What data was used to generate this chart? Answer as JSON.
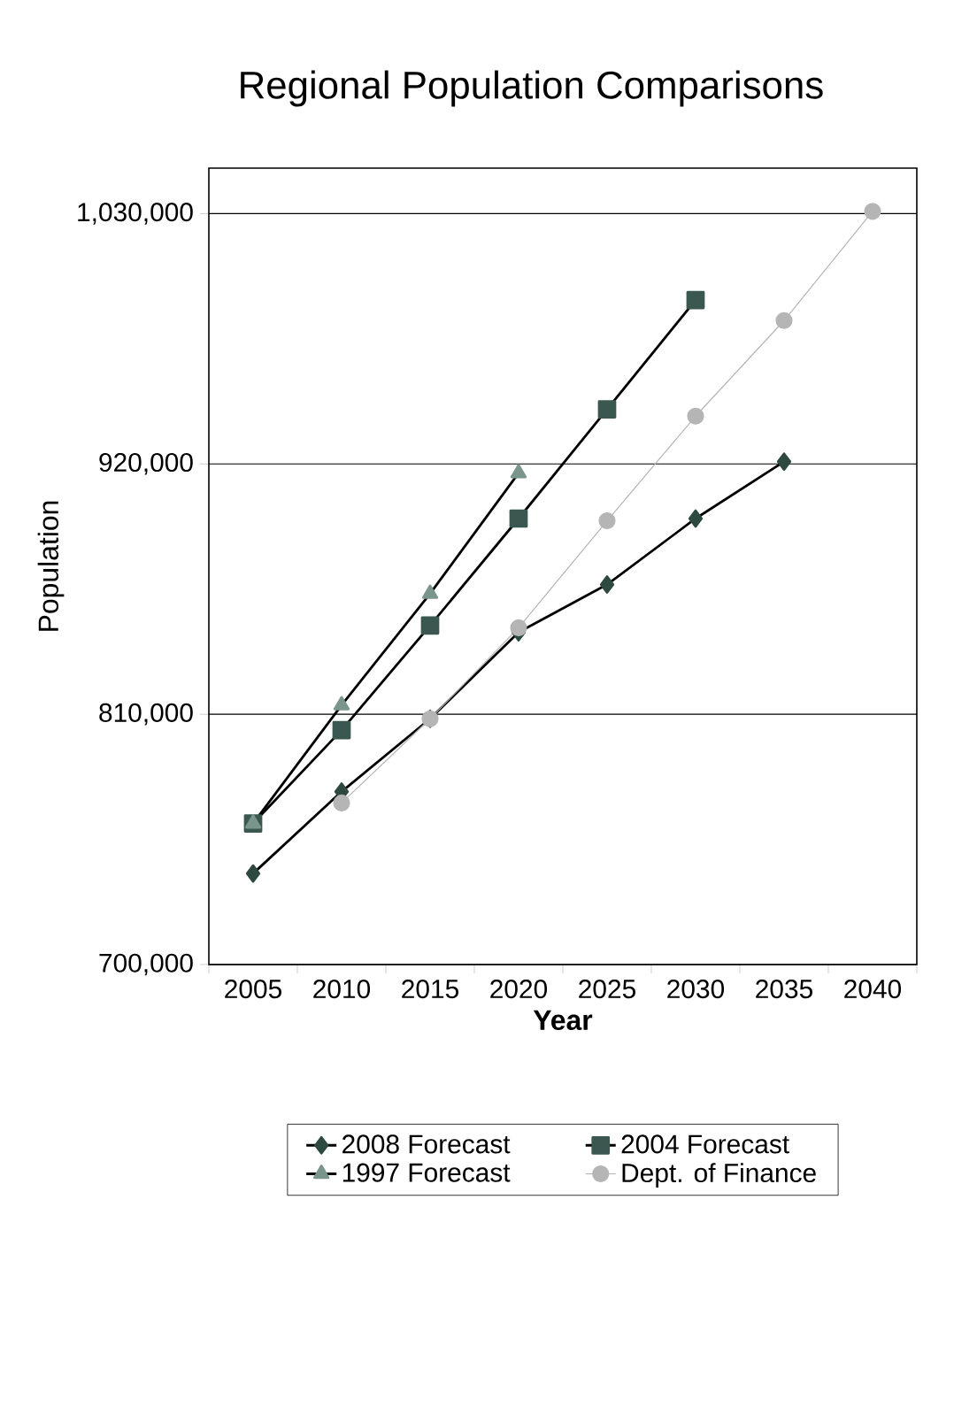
{
  "chart_data": {
    "type": "line",
    "title": "Regional Population Comparisons",
    "xlabel": "Year",
    "ylabel": "Population",
    "categories": [
      "2005",
      "2010",
      "2015",
      "2020",
      "2025",
      "2030",
      "2035",
      "2040"
    ],
    "series": [
      {
        "name": "2008 Forecast",
        "color": "#2e4a40",
        "marker": "diamond",
        "values": [
          740000,
          776000,
          808000,
          846000,
          867000,
          896000,
          921000,
          null
        ]
      },
      {
        "name": "2004 Forecast",
        "color": "#3a5750",
        "marker": "square",
        "values": [
          762000,
          803000,
          849000,
          896000,
          944000,
          992000,
          null,
          null
        ]
      },
      {
        "name": "1997 Forecast",
        "color": "#7a958c",
        "marker": "triangle",
        "values": [
          762000,
          814000,
          863000,
          916000,
          null,
          null,
          null,
          null
        ]
      },
      {
        "name": "Dept. of Finance",
        "color": "#b5b5b5",
        "marker": "circle",
        "values": [
          null,
          771000,
          808000,
          848000,
          895000,
          941000,
          983000,
          1031000
        ]
      }
    ],
    "ylim": [
      700000,
      1050000
    ],
    "yticks": [
      {
        "value": 700000,
        "label": "700,000"
      },
      {
        "value": 810000,
        "label": "810,000"
      },
      {
        "value": 920000,
        "label": "920,000"
      },
      {
        "value": 1030000,
        "label": "1,030,000"
      }
    ],
    "grid": "y",
    "legend": "bottom"
  }
}
